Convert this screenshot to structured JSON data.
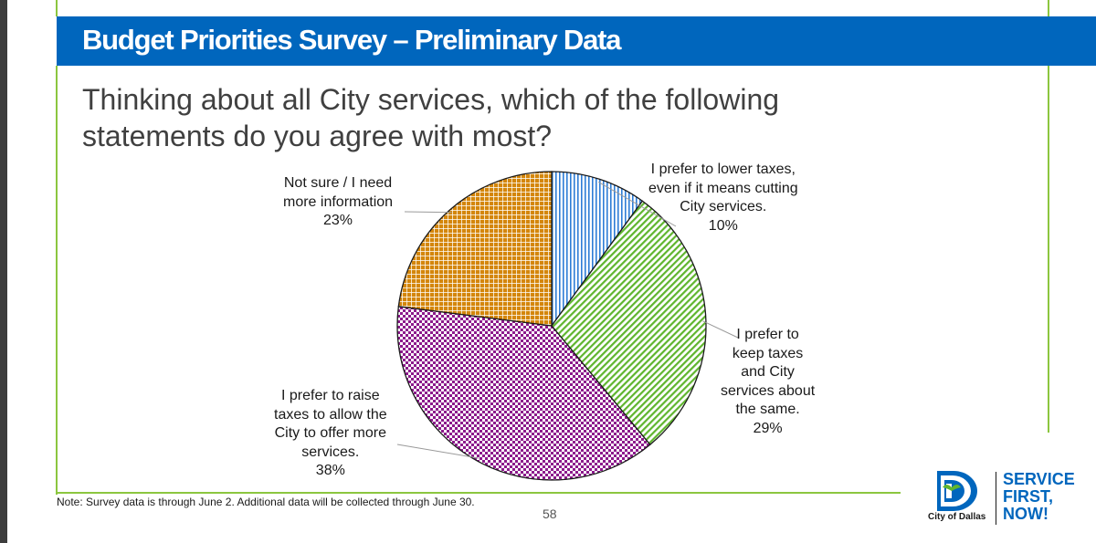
{
  "header": {
    "title": "Budget Priorities Survey – Preliminary Data"
  },
  "question": "Thinking about all City services, which of the following statements do you agree with most?",
  "chart_data": {
    "type": "pie",
    "start_angle_deg": 0,
    "direction": "clockwise",
    "slices": [
      {
        "label": [
          "I prefer to lower taxes,",
          "even if it means cutting",
          "City services."
        ],
        "value": 10,
        "value_label": "10%",
        "color": "#2e7dd6",
        "pattern": "vertical-lines"
      },
      {
        "label": [
          "I prefer to",
          "keep taxes",
          "and City",
          "services about",
          "the same."
        ],
        "value": 29,
        "value_label": "29%",
        "color": "#5fb52e",
        "pattern": "diagonal-lines"
      },
      {
        "label": [
          "I prefer to raise",
          "taxes to allow the",
          "City to offer more",
          "services."
        ],
        "value": 38,
        "value_label": "38%",
        "color": "#8c1a8c",
        "pattern": "checkerboard"
      },
      {
        "label": [
          "Not sure / I need",
          "more information"
        ],
        "value": 23,
        "value_label": "23%",
        "color": "#d4860b",
        "pattern": "grid"
      }
    ]
  },
  "footer": {
    "note": "Note: Survey data is through June 2. Additional data will be collected through June 30.",
    "page_number": "58",
    "logo_caption": "City of Dallas",
    "tagline": [
      "SERVICE",
      "FIRST,",
      "NOW!"
    ]
  }
}
